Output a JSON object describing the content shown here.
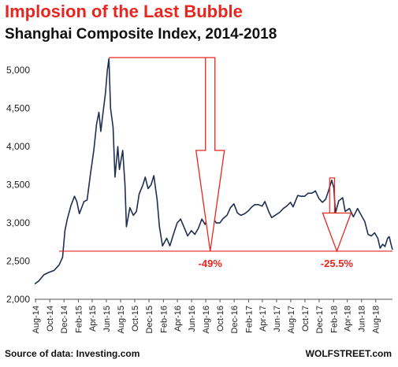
{
  "header": {
    "title": "Implosion of the Last Bubble",
    "subtitle": "Shanghai  Composite  Index, 2014-2018"
  },
  "footer": {
    "source": "Source of data: Investing.com",
    "brand": "WOLFSTREET.com"
  },
  "colors": {
    "line": "#1f2f52",
    "annotation": "#e8261f",
    "title": "#e8261f"
  },
  "chart_data": {
    "type": "line",
    "title": "Shanghai Composite Index, 2014-2018",
    "ylim": [
      2000,
      5250
    ],
    "yticks": [
      "2,000",
      "2,500",
      "3,000",
      "3,500",
      "4,000",
      "4,500",
      "5,000"
    ],
    "ytick_values": [
      2000,
      2500,
      3000,
      3500,
      4000,
      4500,
      5000
    ],
    "xlim": [
      "2014-07-28",
      "2018-10-12"
    ],
    "xticks": [
      "Aug-14",
      "Oct-14",
      "Dec-14",
      "Feb-15",
      "Apr-15",
      "Jun-15",
      "Aug-15",
      "Oct-15",
      "Dec-15",
      "Feb-16",
      "Apr-16",
      "Jun-16",
      "Aug-16",
      "Oct-16",
      "Dec-16",
      "Feb-17",
      "Apr-17",
      "Jun-17",
      "Aug-17",
      "Oct-17",
      "Dec-17",
      "Feb-18",
      "Apr-18",
      "Jun-18",
      "Aug-18"
    ],
    "xtick_dates": [
      "2014-08-01",
      "2014-10-01",
      "2014-12-01",
      "2015-02-01",
      "2015-04-01",
      "2015-06-01",
      "2015-08-01",
      "2015-10-01",
      "2015-12-01",
      "2016-02-01",
      "2016-04-01",
      "2016-06-01",
      "2016-08-01",
      "2016-10-01",
      "2016-12-01",
      "2017-02-01",
      "2017-04-01",
      "2017-06-01",
      "2017-08-01",
      "2017-10-01",
      "2017-12-01",
      "2018-02-01",
      "2018-04-01",
      "2018-06-01",
      "2018-08-01"
    ],
    "grid": false,
    "series": [
      {
        "points": [
          [
            "2014-07-28",
            2200
          ],
          [
            "2014-08-15",
            2240
          ],
          [
            "2014-09-05",
            2320
          ],
          [
            "2014-09-25",
            2350
          ],
          [
            "2014-10-20",
            2380
          ],
          [
            "2014-11-10",
            2450
          ],
          [
            "2014-11-25",
            2550
          ],
          [
            "2014-12-05",
            2900
          ],
          [
            "2014-12-15",
            3050
          ],
          [
            "2014-12-31",
            3230
          ],
          [
            "2015-01-15",
            3350
          ],
          [
            "2015-01-25",
            3280
          ],
          [
            "2015-02-05",
            3120
          ],
          [
            "2015-02-25",
            3280
          ],
          [
            "2015-03-10",
            3300
          ],
          [
            "2015-03-25",
            3650
          ],
          [
            "2015-04-08",
            3950
          ],
          [
            "2015-04-20",
            4300
          ],
          [
            "2015-04-30",
            4450
          ],
          [
            "2015-05-08",
            4200
          ],
          [
            "2015-05-20",
            4500
          ],
          [
            "2015-05-28",
            4700
          ],
          [
            "2015-06-05",
            5000
          ],
          [
            "2015-06-12",
            5150
          ],
          [
            "2015-06-19",
            4500
          ],
          [
            "2015-06-30",
            4250
          ],
          [
            "2015-07-08",
            3600
          ],
          [
            "2015-07-20",
            4000
          ],
          [
            "2015-07-27",
            3700
          ],
          [
            "2015-08-10",
            3950
          ],
          [
            "2015-08-20",
            3500
          ],
          [
            "2015-08-26",
            2950
          ],
          [
            "2015-09-10",
            3200
          ],
          [
            "2015-09-25",
            3100
          ],
          [
            "2015-10-08",
            3150
          ],
          [
            "2015-10-20",
            3380
          ],
          [
            "2015-11-05",
            3500
          ],
          [
            "2015-11-15",
            3600
          ],
          [
            "2015-11-27",
            3450
          ],
          [
            "2015-12-10",
            3500
          ],
          [
            "2015-12-22",
            3620
          ],
          [
            "2016-01-05",
            3300
          ],
          [
            "2016-01-15",
            2950
          ],
          [
            "2016-01-28",
            2700
          ],
          [
            "2016-02-15",
            2800
          ],
          [
            "2016-02-29",
            2700
          ],
          [
            "2016-03-15",
            2850
          ],
          [
            "2016-03-31",
            3000
          ],
          [
            "2016-04-15",
            3050
          ],
          [
            "2016-04-29",
            2950
          ],
          [
            "2016-05-15",
            2830
          ],
          [
            "2016-05-31",
            2900
          ],
          [
            "2016-06-15",
            2850
          ],
          [
            "2016-06-30",
            2930
          ],
          [
            "2016-07-15",
            3050
          ],
          [
            "2016-07-29",
            2980
          ],
          [
            "2016-08-15",
            3100
          ],
          [
            "2016-08-31",
            3070
          ],
          [
            "2016-09-15",
            3000
          ],
          [
            "2016-09-30",
            3000
          ],
          [
            "2016-10-15",
            3060
          ],
          [
            "2016-10-31",
            3100
          ],
          [
            "2016-11-15",
            3200
          ],
          [
            "2016-11-30",
            3250
          ],
          [
            "2016-12-15",
            3130
          ],
          [
            "2016-12-30",
            3100
          ],
          [
            "2017-01-15",
            3120
          ],
          [
            "2017-01-31",
            3160
          ],
          [
            "2017-02-15",
            3210
          ],
          [
            "2017-02-28",
            3240
          ],
          [
            "2017-03-15",
            3240
          ],
          [
            "2017-03-31",
            3220
          ],
          [
            "2017-04-12",
            3280
          ],
          [
            "2017-04-28",
            3150
          ],
          [
            "2017-05-11",
            3070
          ],
          [
            "2017-05-31",
            3110
          ],
          [
            "2017-06-15",
            3140
          ],
          [
            "2017-06-30",
            3190
          ],
          [
            "2017-07-14",
            3220
          ],
          [
            "2017-07-31",
            3270
          ],
          [
            "2017-08-11",
            3210
          ],
          [
            "2017-08-31",
            3360
          ],
          [
            "2017-09-15",
            3350
          ],
          [
            "2017-09-29",
            3350
          ],
          [
            "2017-10-15",
            3390
          ],
          [
            "2017-10-31",
            3390
          ],
          [
            "2017-11-15",
            3420
          ],
          [
            "2017-11-30",
            3320
          ],
          [
            "2017-12-15",
            3270
          ],
          [
            "2017-12-29",
            3310
          ],
          [
            "2018-01-10",
            3420
          ],
          [
            "2018-01-24",
            3560
          ],
          [
            "2018-02-02",
            3460
          ],
          [
            "2018-02-09",
            3130
          ],
          [
            "2018-02-23",
            3290
          ],
          [
            "2018-03-12",
            3330
          ],
          [
            "2018-03-23",
            3150
          ],
          [
            "2018-04-10",
            3190
          ],
          [
            "2018-04-27",
            3080
          ],
          [
            "2018-05-15",
            3190
          ],
          [
            "2018-05-31",
            3100
          ],
          [
            "2018-06-15",
            3020
          ],
          [
            "2018-06-29",
            2850
          ],
          [
            "2018-07-13",
            2830
          ],
          [
            "2018-07-27",
            2870
          ],
          [
            "2018-08-10",
            2800
          ],
          [
            "2018-08-20",
            2670
          ],
          [
            "2018-08-31",
            2720
          ],
          [
            "2018-09-10",
            2690
          ],
          [
            "2018-09-21",
            2800
          ],
          [
            "2018-09-28",
            2820
          ],
          [
            "2018-10-05",
            2730
          ],
          [
            "2018-10-12",
            2650
          ]
        ]
      }
    ],
    "annotations": {
      "peak_value": 5166,
      "low_value": 2630,
      "second_peak_value": 3590,
      "drops": [
        {
          "label": "-49%",
          "arrow_date": "2016-08-20"
        },
        {
          "label": "-25.5%",
          "arrow_date": "2018-02-15"
        }
      ],
      "box": {
        "from": "2018-01-15",
        "to": "2018-02-05"
      }
    }
  }
}
